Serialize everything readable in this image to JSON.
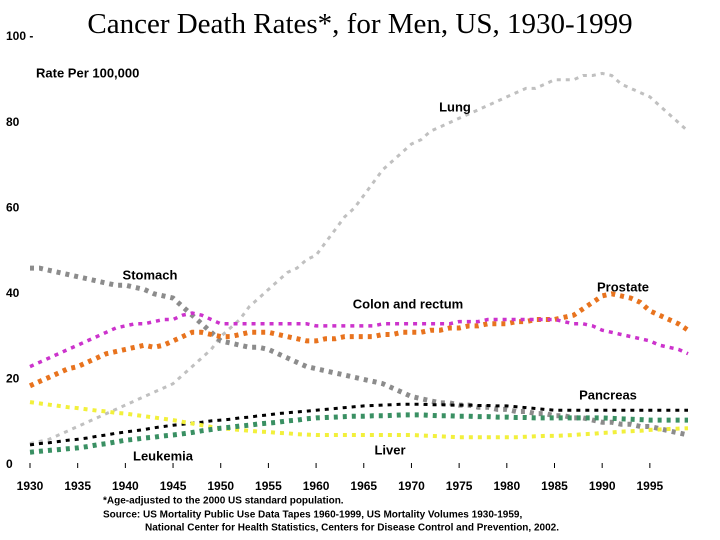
{
  "chart_data": {
    "type": "line",
    "title": "Cancer Death Rates*, for Men, US, 1930-1999",
    "y_axis_label": "Rate Per 100,000",
    "footnotes": [
      "*Age-adjusted to the 2000 US standard population.",
      "Source: US Mortality Public Use Data Tapes 1960-1999, US Mortality Volumes 1930-1959,",
      "National Center for Health Statistics, Centers for Disease Control and Prevention, 2002."
    ],
    "x": [
      1930,
      1931,
      1932,
      1933,
      1934,
      1935,
      1936,
      1937,
      1938,
      1939,
      1940,
      1941,
      1942,
      1943,
      1944,
      1945,
      1946,
      1947,
      1948,
      1949,
      1950,
      1951,
      1952,
      1953,
      1954,
      1955,
      1956,
      1957,
      1958,
      1959,
      1960,
      1961,
      1962,
      1963,
      1964,
      1965,
      1966,
      1967,
      1968,
      1969,
      1970,
      1971,
      1972,
      1973,
      1974,
      1975,
      1976,
      1977,
      1978,
      1979,
      1980,
      1981,
      1982,
      1983,
      1984,
      1985,
      1986,
      1987,
      1988,
      1989,
      1990,
      1991,
      1992,
      1993,
      1994,
      1995,
      1996,
      1997,
      1998,
      1999
    ],
    "xlim": [
      1930,
      1999
    ],
    "xticks": [
      1930,
      1935,
      1940,
      1945,
      1950,
      1955,
      1960,
      1965,
      1970,
      1975,
      1980,
      1985,
      1990,
      1995
    ],
    "ylim": [
      0,
      100
    ],
    "yticks": [
      0,
      20,
      40,
      60,
      80,
      {
        "value": 100,
        "label": "100 -"
      }
    ],
    "series": [
      {
        "name": "Lung",
        "color": "#c0c0c0",
        "values": [
          5,
          5.5,
          6,
          7,
          8,
          9,
          10,
          11,
          12,
          13,
          14,
          15,
          16,
          17,
          18,
          19,
          21,
          23,
          25,
          27,
          30,
          32,
          34,
          37,
          39,
          41,
          43,
          45,
          46,
          48,
          49,
          52,
          55,
          58,
          60,
          63,
          66,
          69,
          71,
          73,
          75,
          76,
          78,
          79,
          80,
          81,
          82,
          83,
          84,
          85,
          86,
          87,
          88,
          88,
          89,
          90,
          90,
          90,
          91,
          91,
          91.5,
          91,
          89,
          88,
          87,
          86,
          84,
          82,
          80,
          78
        ]
      },
      {
        "name": "Stomach",
        "color": "#8c8c8c",
        "values": [
          46,
          46,
          45.5,
          45,
          44.5,
          44,
          43.5,
          43,
          42.5,
          42,
          42,
          41.5,
          41,
          40,
          39.5,
          39,
          37,
          35,
          33,
          31,
          29,
          28.5,
          28,
          27.5,
          27.5,
          27,
          26,
          25,
          24,
          23,
          22.5,
          22,
          21.5,
          21,
          20.5,
          20,
          19.5,
          19,
          18,
          17,
          16,
          15.5,
          15,
          14.5,
          14.5,
          14,
          14,
          13.5,
          13.5,
          13,
          13,
          12.5,
          12.5,
          12,
          12,
          11.5,
          11.5,
          11,
          11,
          10.5,
          10,
          10,
          9.5,
          9.5,
          9,
          9,
          8.5,
          8,
          7.5,
          7
        ]
      },
      {
        "name": "Prostate",
        "color": "#e8731e",
        "values": [
          18.5,
          19.5,
          20.5,
          21.5,
          22.5,
          23,
          24,
          25,
          26,
          26.5,
          27,
          27.5,
          28,
          27.5,
          28,
          29,
          30,
          31,
          31,
          30.5,
          30,
          30,
          30.5,
          31,
          31,
          31,
          30.5,
          30,
          29.5,
          29,
          29,
          29.5,
          29.5,
          30,
          30,
          30,
          30,
          30.5,
          30.5,
          31,
          31,
          31,
          31.5,
          31.5,
          32,
          32,
          32.5,
          32.5,
          33,
          33,
          33,
          33.5,
          33.5,
          34,
          34,
          34,
          34.5,
          35,
          36.5,
          38,
          39.5,
          40,
          39.5,
          39,
          38,
          36,
          35,
          34,
          33,
          31.5
        ]
      },
      {
        "name": "Colon and rectum",
        "color": "#cc33cc",
        "values": [
          23,
          24,
          25,
          26,
          27,
          28,
          29,
          30,
          31,
          32,
          32.5,
          33,
          33,
          33.5,
          34,
          34,
          35,
          35.5,
          35,
          34,
          33,
          33,
          33,
          33,
          33,
          33,
          33,
          33,
          33,
          33,
          32.5,
          32.5,
          32.5,
          32.5,
          32.5,
          32.5,
          32.5,
          33,
          33,
          33,
          33,
          33,
          33,
          33,
          33,
          33.5,
          33.5,
          33.5,
          34,
          34,
          34,
          34,
          34,
          34,
          34,
          34,
          33.5,
          33,
          33,
          32.5,
          31.5,
          31,
          30.5,
          30,
          29.5,
          29,
          28,
          27.5,
          27,
          26
        ]
      },
      {
        "name": "Pancreas",
        "color": "#000000",
        "values": [
          4.7,
          5,
          5.2,
          5.5,
          5.8,
          6,
          6.3,
          6.7,
          7,
          7.4,
          7.7,
          8,
          8.3,
          8.7,
          9,
          9.3,
          9.5,
          9.8,
          10,
          10.3,
          10.5,
          10.7,
          11,
          11.2,
          11.5,
          11.7,
          12,
          12.2,
          12.4,
          12.6,
          12.8,
          13,
          13.2,
          13.4,
          13.6,
          13.8,
          13.9,
          14,
          14.1,
          14.2,
          14.2,
          14.2,
          14.1,
          14.1,
          14,
          14,
          14,
          13.9,
          13.9,
          13.8,
          13.8,
          13.6,
          13.4,
          13.2,
          13,
          12.8,
          12.8,
          12.8,
          12.8,
          12.8,
          12.8,
          12.8,
          12.8,
          12.8,
          12.8,
          12.8,
          12.8,
          12.8,
          12.8,
          12.8
        ]
      },
      {
        "name": "Liver",
        "color": "#f2f03c",
        "values": [
          14.7,
          14.4,
          14.1,
          13.8,
          13.5,
          13.3,
          13,
          12.7,
          12.5,
          12.2,
          12,
          11.7,
          11.4,
          11.1,
          10.8,
          10.5,
          10.1,
          9.7,
          9.3,
          8.9,
          8.6,
          8.4,
          8.2,
          8,
          7.8,
          7.7,
          7.5,
          7.4,
          7.2,
          7.1,
          7,
          7,
          7,
          7,
          7,
          7,
          7,
          7,
          7,
          7,
          7,
          6.9,
          6.8,
          6.7,
          6.6,
          6.5,
          6.5,
          6.5,
          6.5,
          6.5,
          6.5,
          6.5,
          6.6,
          6.7,
          6.8,
          6.8,
          6.9,
          7,
          7.2,
          7.3,
          7.5,
          7.6,
          7.8,
          7.9,
          8,
          8.2,
          8.3,
          8.4,
          8.5,
          8.6
        ]
      },
      {
        "name": "Leukemia",
        "color": "#3a9063",
        "values": [
          3,
          3.2,
          3.4,
          3.6,
          3.8,
          4,
          4.3,
          4.7,
          5,
          5.4,
          5.8,
          6,
          6.3,
          6.5,
          6.8,
          7,
          7.3,
          7.6,
          8,
          8.3,
          8.6,
          8.8,
          9.1,
          9.3,
          9.6,
          9.8,
          10,
          10.3,
          10.5,
          10.8,
          11,
          11.1,
          11.2,
          11.3,
          11.4,
          11.4,
          11.5,
          11.5,
          11.6,
          11.7,
          11.7,
          11.7,
          11.6,
          11.5,
          11.5,
          11.4,
          11.4,
          11.3,
          11.3,
          11.2,
          11.2,
          11.1,
          11.1,
          11,
          11,
          11,
          11,
          11,
          11,
          11,
          11,
          10.9,
          10.8,
          10.7,
          10.6,
          10.5,
          10.5,
          10.5,
          10.5,
          10.5
        ]
      }
    ]
  }
}
